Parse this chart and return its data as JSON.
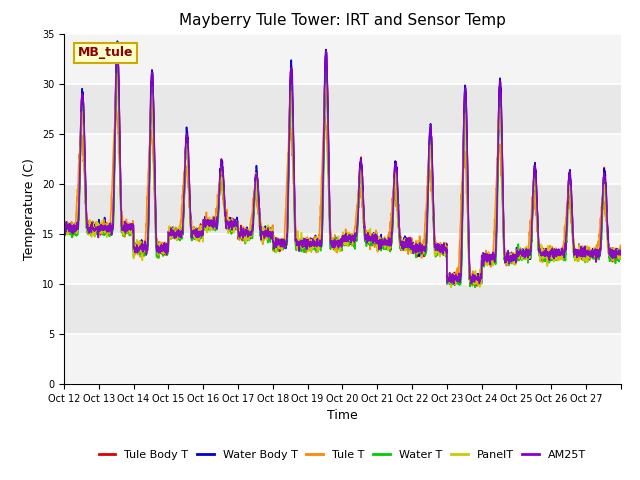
{
  "title": "Mayberry Tule Tower: IRT and Sensor Temp",
  "xlabel": "Time",
  "ylabel": "Temperature (C)",
  "ylim": [
    0,
    35
  ],
  "yticks": [
    0,
    5,
    10,
    15,
    20,
    25,
    30,
    35
  ],
  "bg_color": "#e8e8e8",
  "fig_color": "white",
  "grid_color": "white",
  "annotation_text": "MB_tule",
  "annotation_color": "#8b0000",
  "annotation_bg": "#ffffcc",
  "annotation_border": "#ccaa00",
  "series": [
    {
      "label": "Tule Body T",
      "color": "#dd0000",
      "lw": 1.2
    },
    {
      "label": "Water Body T",
      "color": "#0000cc",
      "lw": 1.2
    },
    {
      "label": "Tule T",
      "color": "#ff8800",
      "lw": 1.2
    },
    {
      "label": "Water T",
      "color": "#00cc00",
      "lw": 1.2
    },
    {
      "label": "PanelT",
      "color": "#cccc00",
      "lw": 1.2
    },
    {
      "label": "AM25T",
      "color": "#8800cc",
      "lw": 1.2
    }
  ],
  "x_tick_labels": [
    "Oct 12",
    "Oct 13",
    "Oct 14",
    "Oct 15",
    "Oct 16",
    "Oct 17",
    "Oct 18",
    "Oct 19",
    "Oct 20",
    "Oct 21",
    "Oct 22",
    "Oct 23",
    "Oct 24",
    "Oct 25",
    "Oct 26",
    "Oct 27",
    ""
  ],
  "n_days": 16,
  "pts_per_day": 144,
  "base_temps": [
    15.5,
    15.5,
    13.5,
    15.0,
    16.0,
    15.0,
    14.0,
    14.0,
    14.5,
    14.0,
    13.5,
    10.5,
    12.5,
    13.0,
    13.0,
    13.0
  ],
  "day_amps": [
    13.5,
    18.0,
    17.5,
    10.0,
    6.0,
    6.0,
    17.5,
    19.0,
    7.5,
    8.0,
    12.0,
    19.0,
    17.5,
    8.5,
    8.0,
    8.0
  ],
  "orange_scale": 0.65,
  "panel_scale": 0.85,
  "tick_fontsize": 7,
  "label_fontsize": 9,
  "title_fontsize": 11,
  "legend_fontsize": 8
}
